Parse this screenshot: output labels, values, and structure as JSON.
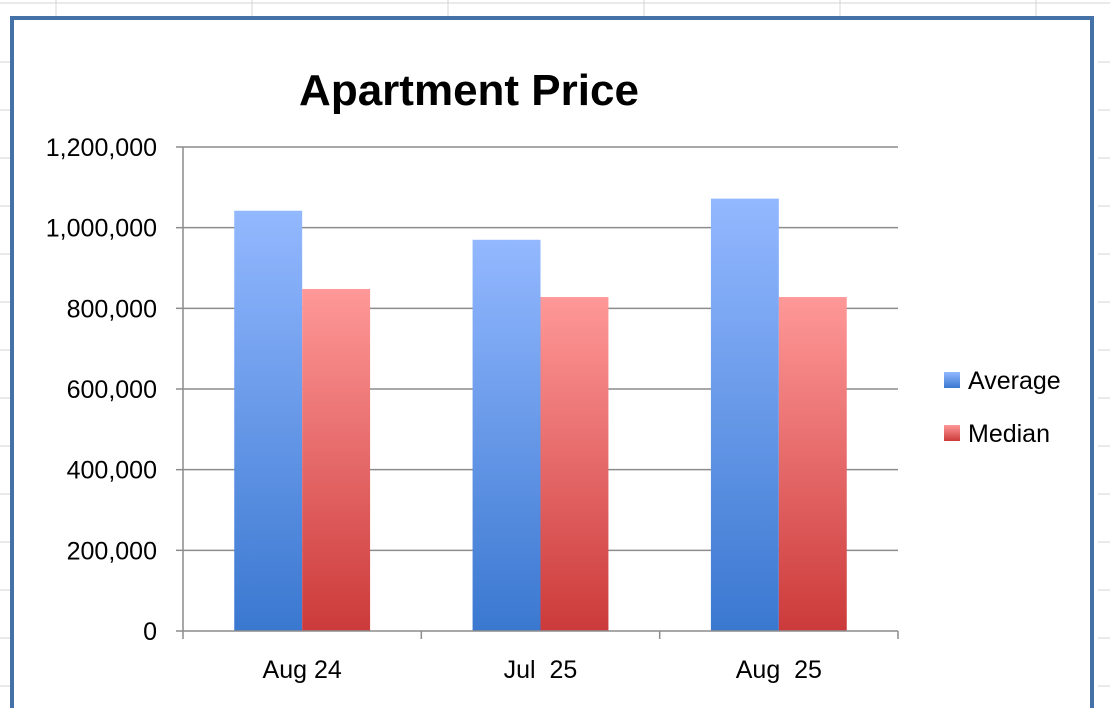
{
  "chart_data": {
    "type": "bar",
    "title": "Apartment Price",
    "xlabel": "",
    "ylabel": "",
    "categories": [
      "Aug 24",
      "Jul  25",
      "Aug  25"
    ],
    "series": [
      {
        "name": "Average",
        "values": [
          1042000,
          970000,
          1072000
        ],
        "color_top": "#93b8ff",
        "color_bottom": "#3a78d0"
      },
      {
        "name": "Median",
        "values": [
          848000,
          828000,
          828000
        ],
        "color_top": "#ff9898",
        "color_bottom": "#cc3a3a"
      }
    ],
    "ylim": [
      0,
      1200000
    ],
    "yticks": [
      0,
      200000,
      400000,
      600000,
      800000,
      1000000,
      1200000
    ],
    "ytick_labels": [
      "0",
      "200,000",
      "400,000",
      "600,000",
      "800,000",
      "1,000,000",
      "1,200,000"
    ],
    "grid": true,
    "legend": "right"
  }
}
